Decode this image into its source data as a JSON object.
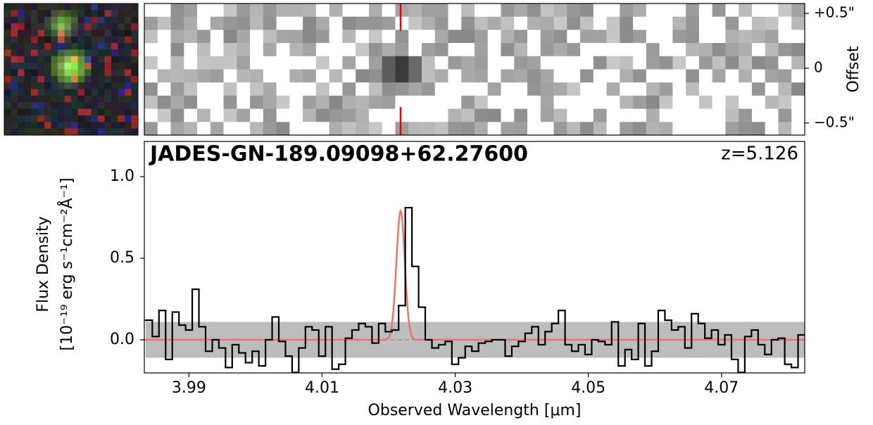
{
  "chart_data": [
    {
      "type": "spectrum2d",
      "ylabel": "Offset",
      "ylim": [
        -0.61,
        0.59
      ],
      "yticks": [
        {
          "value": 0.5,
          "label": "+0.5\""
        },
        0,
        {
          "value": -0.5,
          "label": "−0.5\""
        }
      ]
    },
    {
      "type": "step",
      "title": "JADES-GN-189.09098+62.27600",
      "annotation": "z=5.126",
      "xlabel": "Observed Wavelength [μm]",
      "ylabel": [
        "Flux Density",
        "[10⁻¹⁹ erg s⁻¹cm⁻²Å⁻¹]"
      ],
      "xlim": [
        3.9833,
        4.0825
      ],
      "ylim": [
        -0.203,
        1.216
      ],
      "xticks": [
        3.99,
        4.01,
        4.03,
        4.05,
        4.07
      ],
      "yticks": [
        {
          "value": 0,
          "label": "0.0"
        },
        0.5,
        {
          "value": 1,
          "label": "1.0"
        }
      ],
      "x": [
        3.984,
        3.985,
        3.986,
        3.987,
        3.988,
        3.989,
        3.99,
        3.991,
        3.992,
        3.993,
        3.994,
        3.995,
        3.996,
        3.997,
        3.998,
        3.999,
        4.0,
        4.001,
        4.002,
        4.003,
        4.004,
        4.005,
        4.006,
        4.007,
        4.008,
        4.009,
        4.01,
        4.011,
        4.012,
        4.013,
        4.014,
        4.015,
        4.016,
        4.017,
        4.018,
        4.019,
        4.02,
        4.021,
        4.022,
        4.023,
        4.024,
        4.025,
        4.026,
        4.027,
        4.028,
        4.029,
        4.03,
        4.031,
        4.032,
        4.033,
        4.034,
        4.035,
        4.036,
        4.037,
        4.038,
        4.039,
        4.04,
        4.041,
        4.042,
        4.043,
        4.044,
        4.045,
        4.046,
        4.047,
        4.048,
        4.049,
        4.05,
        4.051,
        4.052,
        4.053,
        4.054,
        4.055,
        4.056,
        4.057,
        4.058,
        4.059,
        4.06,
        4.061,
        4.062,
        4.063,
        4.064,
        4.065,
        4.066,
        4.067,
        4.068,
        4.069,
        4.07,
        4.071,
        4.072,
        4.073,
        4.074,
        4.075,
        4.076,
        4.077,
        4.078,
        4.079,
        4.08,
        4.081,
        4.082
      ],
      "values": [
        0.12,
        0.02,
        0.18,
        -0.12,
        0.17,
        0.09,
        0.06,
        0.31,
        0.08,
        -0.07,
        0.0,
        -0.05,
        -0.17,
        -0.03,
        -0.08,
        -0.14,
        -0.07,
        -0.16,
        0.0,
        0.14,
        -0.01,
        -0.1,
        -0.2,
        -0.05,
        0.08,
        0.06,
        -0.1,
        0.08,
        -0.18,
        -0.15,
        0.01,
        0.06,
        0.1,
        0.08,
        -0.02,
        0.1,
        0.05,
        0.06,
        0.21,
        0.81,
        0.45,
        0.2,
        0.0,
        -0.05,
        -0.03,
        -0.01,
        -0.15,
        -0.11,
        -0.04,
        -0.07,
        -0.02,
        -0.01,
        0.0,
        0.0,
        -0.1,
        -0.04,
        -0.01,
        0.04,
        0.08,
        -0.03,
        0.05,
        0.1,
        0.18,
        -0.03,
        -0.07,
        -0.03,
        -0.09,
        0.0,
        -0.01,
        -0.03,
        0.11,
        -0.16,
        -0.06,
        -0.12,
        0.1,
        -0.16,
        -0.07,
        0.18,
        0.12,
        0.06,
        0.08,
        -0.05,
        0.16,
        0.1,
        0.01,
        0.06,
        -0.03,
        0.03,
        -0.12,
        -0.2,
        0.02,
        0.06,
        -0.03,
        -0.09,
        0.0,
        0.01,
        -0.15,
        -0.17,
        0.03
      ],
      "color": "#000000",
      "error": 0.11,
      "error_color": "#bdbdbd",
      "fit": {
        "center": 4.0218,
        "amplitude": 0.79,
        "sigma": 0.00063,
        "color": "#f07070"
      },
      "hline": 0,
      "hline_color": "#999999",
      "title_color": "#ff0000"
    }
  ]
}
